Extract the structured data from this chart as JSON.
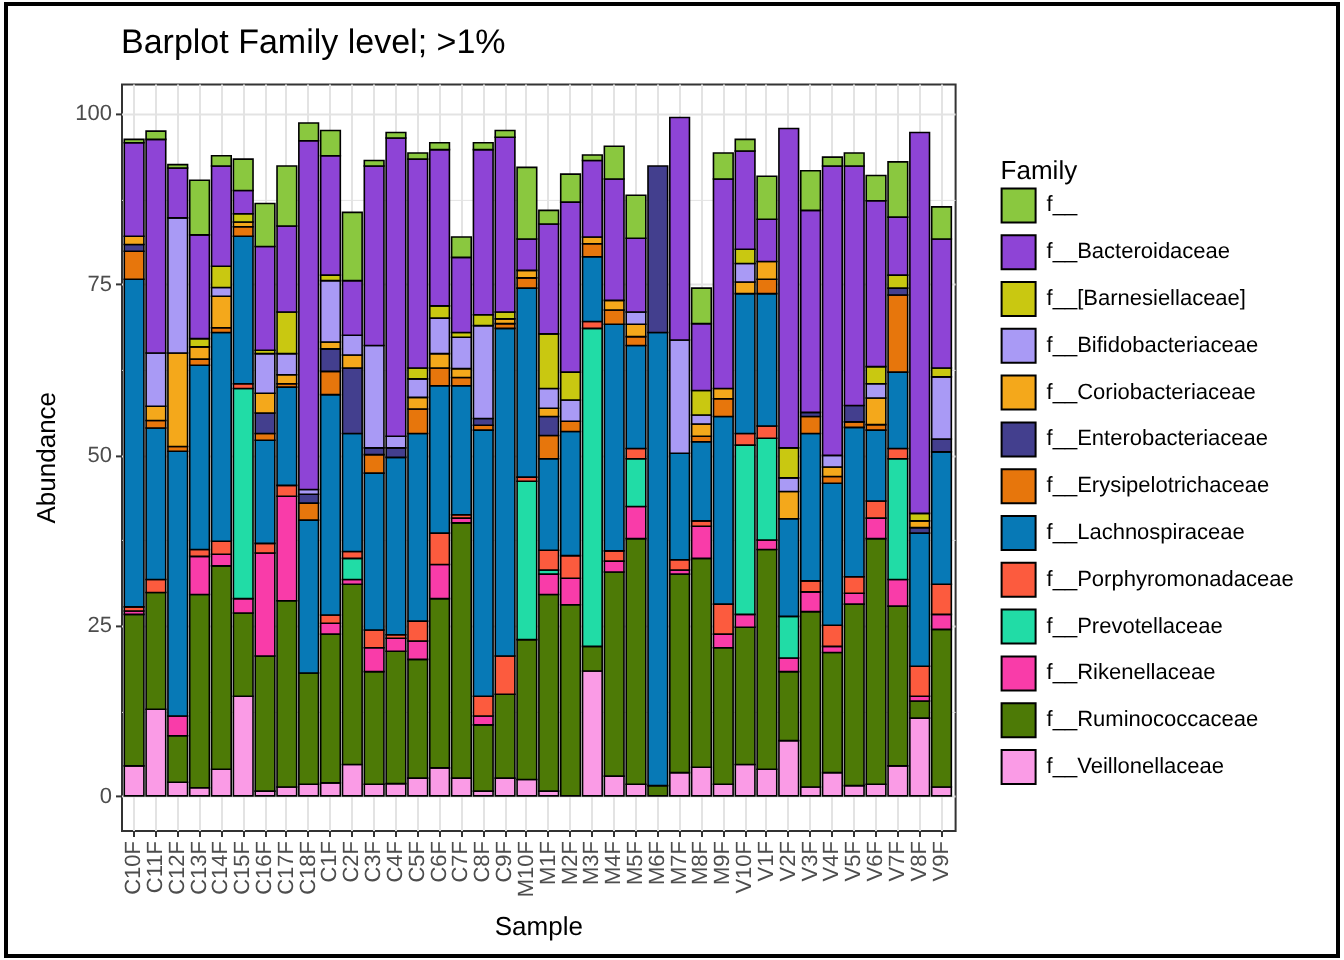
{
  "chart_data": {
    "type": "bar",
    "title": "Barplot Family level; >1%",
    "xlabel": "Sample",
    "ylabel": "Abundance",
    "legend_title": "Family",
    "categories": [
      "C10F",
      "C11F",
      "C12F",
      "C13F",
      "C14F",
      "C15F",
      "C16F",
      "C17F",
      "C18F",
      "C1F",
      "C2F",
      "C3F",
      "C4F",
      "C5F",
      "C6F",
      "C7F",
      "C8F",
      "C9F",
      "M10F",
      "M1F",
      "M2F",
      "M3F",
      "M4F",
      "M5F",
      "M6F",
      "M7F",
      "M8F",
      "M9F",
      "V10F",
      "V1F",
      "V2F",
      "V3F",
      "V4F",
      "V5F",
      "V6F",
      "V7F",
      "V8F",
      "V9F"
    ],
    "stacked": true,
    "ylim": [
      -5,
      104.4
    ],
    "yticks": [
      0,
      {
        "value": 12.5,
        "label": null
      },
      25,
      {
        "value": 37.5,
        "label": null
      },
      50,
      {
        "value": 62.5,
        "label": null
      },
      75,
      {
        "value": 87.5,
        "label": null
      },
      100
    ],
    "grid": true,
    "legend": "right",
    "series": [
      {
        "name": "f__Veillonellaceae",
        "color": "#fa9be6",
        "values": [
          4.4,
          12.7,
          2.0,
          1.2,
          3.9,
          14.6,
          0.7,
          1.3,
          1.7,
          1.9,
          4.6,
          1.7,
          1.8,
          2.6,
          4.1,
          2.6,
          0.7,
          2.6,
          2.4,
          0.7,
          null,
          18.3,
          2.9,
          1.7,
          null,
          3.4,
          4.2,
          1.7,
          4.6,
          3.9,
          8.1,
          1.3,
          3.4,
          1.5,
          1.7,
          4.4,
          11.4,
          1.3
        ]
      },
      {
        "name": "f__Ruminococcaceae",
        "color": "#4d7a06",
        "values": [
          22.2,
          17.1,
          6.8,
          28.3,
          29.8,
          12.2,
          19.8,
          27.3,
          16.3,
          21.8,
          26.4,
          16.5,
          19.4,
          17.4,
          24.8,
          37.4,
          9.7,
          12.3,
          20.5,
          28.8,
          28.0,
          3.6,
          29.9,
          36.0,
          1.5,
          29.1,
          30.6,
          20.0,
          20.1,
          32.2,
          10.1,
          25.7,
          17.6,
          26.6,
          36.0,
          23.4,
          2.5,
          23.1
        ]
      },
      {
        "name": "f__Rikenellaceae",
        "color": "#f93ca9",
        "values": [
          0.5,
          null,
          2.9,
          5.6,
          1.7,
          2.1,
          15.1,
          15.3,
          null,
          1.6,
          0.7,
          3.5,
          1.9,
          2.7,
          5.0,
          0.7,
          1.3,
          null,
          null,
          3.0,
          3.9,
          null,
          1.6,
          4.7,
          null,
          0.6,
          4.7,
          2.0,
          1.9,
          1.4,
          2.0,
          2.9,
          0.9,
          1.6,
          3.0,
          3.9,
          0.7,
          2.2
        ]
      },
      {
        "name": "f__Prevotellaceae",
        "color": "#21dca6",
        "values": [
          null,
          null,
          null,
          null,
          null,
          30.8,
          null,
          null,
          null,
          null,
          3.1,
          null,
          null,
          null,
          null,
          null,
          null,
          null,
          23.2,
          0.6,
          null,
          46.6,
          null,
          7.0,
          null,
          null,
          null,
          null,
          24.8,
          14.9,
          6.1,
          null,
          null,
          null,
          null,
          17.7,
          null,
          null
        ]
      },
      {
        "name": "f__Porphyromonadaceae",
        "color": "#fc5b3e",
        "values": [
          0.6,
          1.9,
          null,
          1.0,
          1.9,
          0.7,
          1.4,
          1.6,
          null,
          1.2,
          1.0,
          2.6,
          0.5,
          2.9,
          4.6,
          0.5,
          2.9,
          5.6,
          0.6,
          2.9,
          3.3,
          1.0,
          1.5,
          1.5,
          null,
          1.5,
          0.8,
          4.4,
          1.7,
          1.8,
          null,
          1.6,
          3.1,
          2.4,
          2.5,
          1.5,
          4.4,
          4.4
        ]
      },
      {
        "name": "f__Lachnospiraceae",
        "color": "#0779b6",
        "values": [
          48.0,
          22.2,
          38.8,
          27.0,
          30.6,
          21.6,
          15.1,
          14.4,
          22.4,
          32.3,
          17.3,
          23.0,
          26.0,
          27.5,
          21.6,
          18.9,
          39.0,
          48.0,
          27.7,
          13.4,
          18.2,
          9.5,
          33.2,
          15.1,
          66.4,
          15.6,
          11.6,
          27.5,
          20.5,
          19.4,
          14.3,
          21.6,
          20.8,
          21.9,
          10.4,
          11.2,
          19.5,
          19.4
        ]
      },
      {
        "name": "f__Erysipelotrichaceae",
        "color": "#e7760c",
        "values": [
          4.1,
          1.1,
          0.7,
          0.9,
          0.7,
          1.4,
          1.0,
          0.5,
          2.5,
          3.4,
          null,
          2.7,
          null,
          3.6,
          2.6,
          1.2,
          0.7,
          0.7,
          1.5,
          3.4,
          1.5,
          1.9,
          2.1,
          1.3,
          null,
          null,
          0.8,
          2.6,
          null,
          2.1,
          null,
          2.5,
          1.0,
          0.8,
          0.8,
          11.3,
          null,
          null
        ]
      },
      {
        "name": "f__Enterobacteriaceae",
        "color": "#433f8e",
        "values": [
          1.0,
          null,
          null,
          null,
          null,
          null,
          3.0,
          null,
          1.3,
          3.3,
          9.6,
          1.0,
          1.4,
          null,
          null,
          null,
          1.0,
          null,
          null,
          2.8,
          null,
          null,
          null,
          null,
          24.4,
          null,
          null,
          null,
          null,
          null,
          null,
          0.6,
          null,
          2.4,
          null,
          1.0,
          0.8,
          1.9
        ]
      },
      {
        "name": "f__Coriobacteriaceae",
        "color": "#f4a81b",
        "values": [
          1.2,
          2.1,
          13.7,
          1.8,
          4.6,
          0.7,
          2.9,
          1.3,
          null,
          1.0,
          1.9,
          null,
          null,
          1.7,
          2.1,
          1.3,
          null,
          0.7,
          1.1,
          1.2,
          null,
          1.0,
          1.4,
          1.8,
          null,
          null,
          1.8,
          1.5,
          1.7,
          2.6,
          4.0,
          null,
          1.4,
          null,
          3.9,
          null,
          1.0,
          null
        ]
      },
      {
        "name": "f__Bifidobacteriaceae",
        "color": "#a99af5",
        "values": [
          null,
          7.8,
          19.8,
          null,
          1.3,
          null,
          5.8,
          3.1,
          0.7,
          9.0,
          2.9,
          15.0,
          1.7,
          2.7,
          5.2,
          4.6,
          13.6,
          null,
          null,
          2.9,
          3.1,
          null,
          null,
          1.8,
          null,
          16.6,
          1.3,
          null,
          2.7,
          null,
          2.0,
          null,
          1.7,
          null,
          2.1,
          null,
          null,
          9.1
        ]
      },
      {
        "name": "f__[Barnesiellaceae]",
        "color": "#c9c811",
        "values": [
          null,
          null,
          null,
          1.2,
          3.1,
          1.2,
          0.5,
          6.1,
          null,
          0.8,
          null,
          null,
          null,
          1.6,
          1.8,
          0.7,
          1.6,
          1.0,
          null,
          8.0,
          4.1,
          null,
          null,
          null,
          null,
          null,
          3.6,
          null,
          2.1,
          null,
          4.4,
          null,
          null,
          null,
          2.5,
          1.9,
          1.1,
          1.3
        ]
      },
      {
        "name": "f__Bacteroidaceae",
        "color": "#8e44d6",
        "values": [
          13.7,
          31.3,
          7.3,
          15.2,
          14.7,
          3.4,
          15.2,
          12.6,
          51.1,
          17.5,
          8.0,
          26.3,
          43.7,
          30.6,
          22.9,
          11.0,
          24.2,
          25.6,
          4.6,
          16.1,
          24.9,
          11.2,
          17.8,
          10.8,
          null,
          32.6,
          9.8,
          30.7,
          14.4,
          6.2,
          46.8,
          29.6,
          42.4,
          35.1,
          24.3,
          8.5,
          55.8,
          18.9
        ]
      },
      {
        "name": "f__",
        "color": "#8ac83f",
        "values": [
          0.5,
          1.2,
          0.5,
          8.0,
          1.5,
          4.6,
          6.3,
          8.8,
          2.6,
          3.7,
          10.0,
          0.8,
          0.8,
          0.9,
          1.0,
          3.0,
          1.0,
          1.0,
          10.5,
          2.0,
          4.1,
          0.8,
          4.8,
          6.3,
          null,
          null,
          5.2,
          3.8,
          1.7,
          6.3,
          null,
          5.8,
          1.3,
          1.9,
          3.7,
          8.1,
          null,
          4.7
        ]
      }
    ]
  }
}
